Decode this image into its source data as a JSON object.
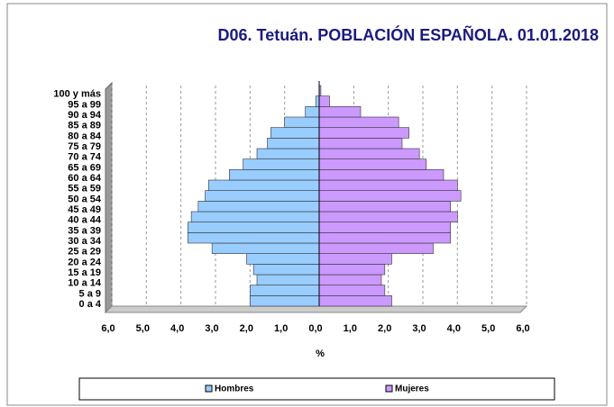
{
  "chart_data": {
    "type": "pyramid",
    "title": "D06. Tetuán. POBLACIÓN ESPAÑOLA. 01.01.2018",
    "x_label": "%",
    "categories": [
      "0 a 4",
      "5 a 9",
      "10 a 14",
      "15 a 19",
      "20 a 24",
      "25 a 29",
      "30 a 34",
      "35 a 39",
      "40 a 44",
      "45 a 49",
      "50 a 54",
      "55 a 59",
      "60 a 64",
      "65 a 69",
      "70 a 74",
      "75 a 79",
      "80 a 84",
      "85 a 89",
      "90 a 94",
      "95 a 99",
      "100 y más"
    ],
    "series": [
      {
        "name": "Hombres",
        "color": "#99ccff",
        "values": [
          2.0,
          2.0,
          1.8,
          1.9,
          2.1,
          3.1,
          3.8,
          3.8,
          3.7,
          3.5,
          3.3,
          3.2,
          2.6,
          2.2,
          1.8,
          1.5,
          1.4,
          1.0,
          0.4,
          0.1,
          0.0
        ]
      },
      {
        "name": "Mujeres",
        "color": "#cc99ff",
        "values": [
          2.1,
          1.9,
          1.8,
          1.9,
          2.1,
          3.3,
          3.8,
          3.8,
          4.0,
          3.8,
          4.1,
          4.0,
          3.6,
          3.1,
          2.9,
          2.4,
          2.6,
          2.3,
          1.2,
          0.3,
          0.05
        ]
      }
    ],
    "xlim": [
      -6,
      6
    ],
    "xticks": [
      {
        "value": -6,
        "label": "6,0"
      },
      {
        "value": -5,
        "label": "5,0"
      },
      {
        "value": -4,
        "label": "4,0"
      },
      {
        "value": -3,
        "label": "3,0"
      },
      {
        "value": -2,
        "label": "2,0"
      },
      {
        "value": -1,
        "label": "1,0"
      },
      {
        "value": 0,
        "label": "0,0"
      },
      {
        "value": 1,
        "label": "1,0"
      },
      {
        "value": 2,
        "label": "2,0"
      },
      {
        "value": 3,
        "label": "3,0"
      },
      {
        "value": 4,
        "label": "4,0"
      },
      {
        "value": 5,
        "label": "5,0"
      },
      {
        "value": 6,
        "label": "6,0"
      }
    ],
    "grid": true
  }
}
